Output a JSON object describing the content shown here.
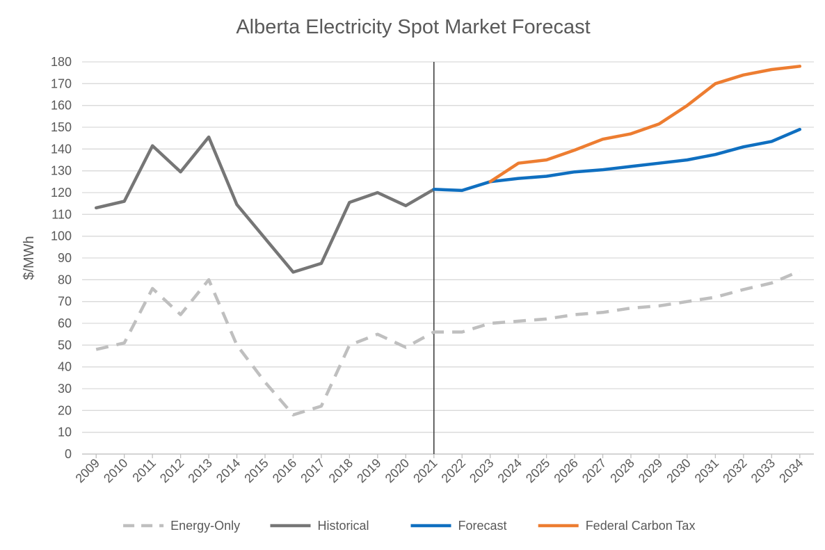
{
  "chart_data": {
    "type": "line",
    "title": "Alberta Electricity Spot Market Forecast",
    "xlabel": "",
    "ylabel": "$/MWh",
    "ylim": [
      0,
      180
    ],
    "yticks": [
      0,
      10,
      20,
      30,
      40,
      50,
      60,
      70,
      80,
      90,
      100,
      110,
      120,
      130,
      140,
      150,
      160,
      170,
      180
    ],
    "grid": "horizontal",
    "legend_position": "bottom",
    "categories": [
      "2009",
      "2010",
      "2011",
      "2012",
      "2013",
      "2014",
      "2015",
      "2016",
      "2017",
      "2018",
      "2019",
      "2020",
      "2021",
      "2022",
      "2023",
      "2024",
      "2025",
      "2026",
      "2027",
      "2028",
      "2029",
      "2030",
      "2031",
      "2032",
      "2033",
      "2034"
    ],
    "divider_at": "2021",
    "series": [
      {
        "name": "Energy-Only",
        "color": "#bfbfbf",
        "style": "dashed",
        "values": [
          48,
          51,
          76,
          64,
          80,
          50,
          33,
          18,
          22,
          50,
          55,
          49,
          56,
          56,
          60,
          61,
          62,
          64,
          65,
          67,
          68,
          70,
          72,
          75.5,
          78.5,
          84
        ]
      },
      {
        "name": "Historical",
        "color": "#767676",
        "style": "solid",
        "values": [
          113,
          116,
          141.5,
          129.5,
          145.5,
          114.5,
          99,
          83.5,
          87.5,
          115.5,
          120,
          114,
          121.5,
          null,
          null,
          null,
          null,
          null,
          null,
          null,
          null,
          null,
          null,
          null,
          null,
          null
        ]
      },
      {
        "name": "Forecast",
        "color": "#0f6fc0",
        "style": "solid",
        "values": [
          null,
          null,
          null,
          null,
          null,
          null,
          null,
          null,
          null,
          null,
          null,
          null,
          121.5,
          121,
          125,
          126.5,
          127.5,
          129.5,
          130.5,
          132,
          133.5,
          135,
          137.5,
          141,
          143.5,
          149
        ]
      },
      {
        "name": "Federal Carbon Tax",
        "color": "#ed7d31",
        "style": "solid",
        "values": [
          null,
          null,
          null,
          null,
          null,
          null,
          null,
          null,
          null,
          null,
          null,
          null,
          null,
          null,
          125,
          133.5,
          135,
          139.5,
          144.5,
          147,
          151.5,
          160,
          170,
          174,
          176.5,
          178
        ]
      }
    ]
  }
}
